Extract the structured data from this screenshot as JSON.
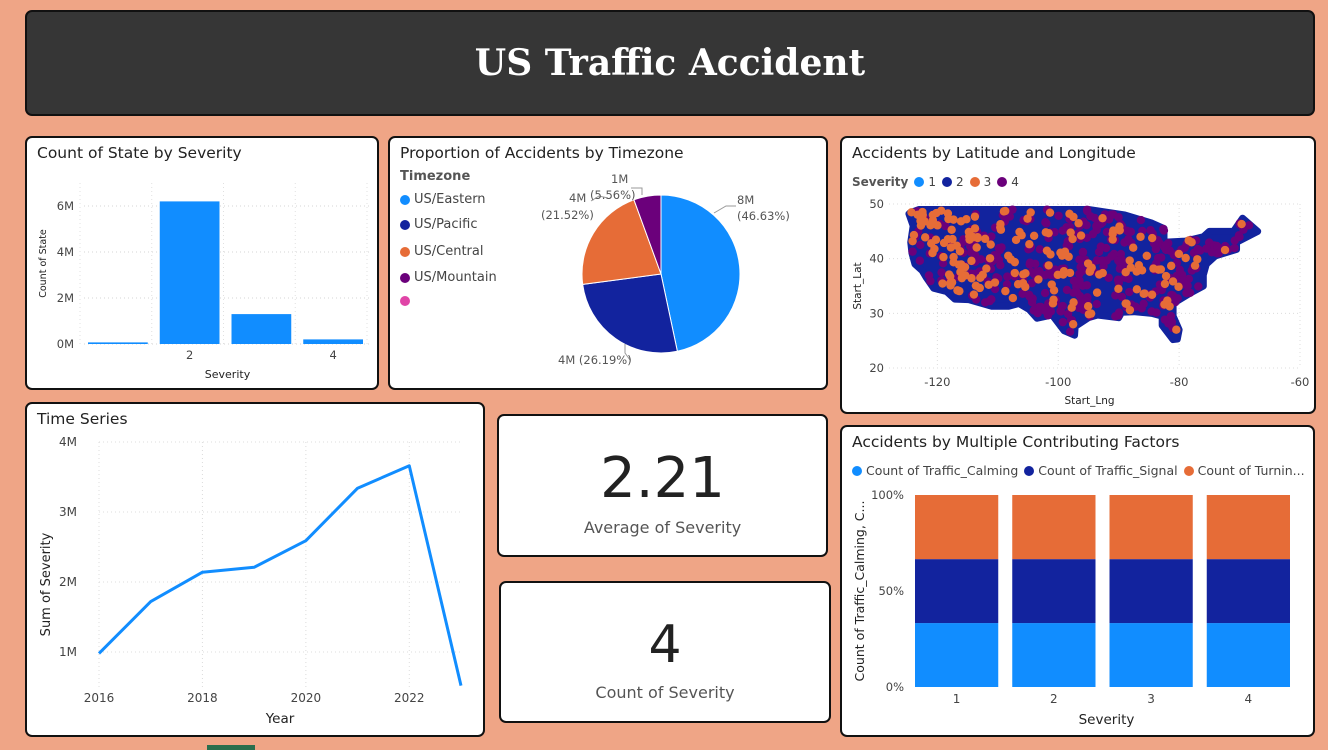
{
  "title": "US Traffic Accident",
  "colors": {
    "sev1": "#118dff",
    "sev2": "#12239e",
    "sev3": "#e66c37",
    "sev4": "#6b007b",
    "pink": "#e044a7"
  },
  "bar_card": {
    "title": "Count of State by Severity",
    "chart_data": {
      "type": "bar",
      "categories": [
        "1",
        "2",
        "3",
        "4"
      ],
      "tick_labels": [
        "",
        "2",
        "",
        "4"
      ],
      "values": [
        0.07,
        6.2,
        1.3,
        0.2
      ],
      "unit": "M",
      "xlabel": "Severity",
      "ylabel": "Count of State",
      "ylim": [
        0,
        7
      ],
      "yticks": [
        "0M",
        "2M",
        "4M",
        "6M"
      ]
    }
  },
  "pie_card": {
    "title": "Proportion of Accidents by Timezone",
    "legend_title": "Timezone",
    "legend": [
      "US/Eastern",
      "US/Pacific",
      "US/Central",
      "US/Mountain",
      ""
    ],
    "chart_data": {
      "type": "pie",
      "labels": [
        "US/Eastern",
        "US/Pacific",
        "US/Central",
        "US/Mountain"
      ],
      "values": [
        46.63,
        26.19,
        21.52,
        5.56
      ],
      "data_labels": [
        [
          "8M",
          "(46.63%)"
        ],
        [
          "4M (26.19%)"
        ],
        [
          "4M",
          "(21.52%)"
        ],
        [
          "1M",
          "(5.56%)"
        ]
      ]
    }
  },
  "scatter_card": {
    "title": "Accidents by Latitude and Longitude",
    "legend_title": "Severity",
    "legend": [
      "1",
      "2",
      "3",
      "4"
    ],
    "chart_data": {
      "type": "scatter",
      "xlabel": "Start_Lng",
      "ylabel": "Start_Lat",
      "xlim": [
        -128,
        -60
      ],
      "ylim": [
        20,
        50
      ],
      "xticks": [
        "-120",
        "-100",
        "-80",
        "-60"
      ],
      "yticks": [
        "20",
        "30",
        "40",
        "50"
      ],
      "outline": [
        [
          -124.5,
          48.4
        ],
        [
          -123,
          49
        ],
        [
          -95,
          49
        ],
        [
          -89,
          48
        ],
        [
          -84.5,
          46.5
        ],
        [
          -82.5,
          45.5
        ],
        [
          -82.5,
          43
        ],
        [
          -79,
          43.2
        ],
        [
          -76,
          44
        ],
        [
          -75,
          45
        ],
        [
          -71,
          45
        ],
        [
          -69.5,
          47.4
        ],
        [
          -67,
          45
        ],
        [
          -70.5,
          43
        ],
        [
          -70.5,
          41.7
        ],
        [
          -74,
          40.5
        ],
        [
          -75.5,
          39
        ],
        [
          -76,
          37
        ],
        [
          -76,
          35
        ],
        [
          -78,
          33.8
        ],
        [
          -81,
          31.8
        ],
        [
          -81,
          29.5
        ],
        [
          -80,
          27
        ],
        [
          -80.3,
          25.3
        ],
        [
          -81,
          25.2
        ],
        [
          -82.8,
          27.8
        ],
        [
          -82.8,
          29.5
        ],
        [
          -84.5,
          30
        ],
        [
          -87.5,
          30.3
        ],
        [
          -89.5,
          30.2
        ],
        [
          -90,
          29.2
        ],
        [
          -93.5,
          29.7
        ],
        [
          -95,
          29.2
        ],
        [
          -97.2,
          27.6
        ],
        [
          -97.3,
          26
        ],
        [
          -99,
          26.8
        ],
        [
          -101,
          29.7
        ],
        [
          -103.5,
          29.1
        ],
        [
          -104.8,
          30.7
        ],
        [
          -106.5,
          31.8
        ],
        [
          -108.2,
          31.3
        ],
        [
          -111,
          31.3
        ],
        [
          -114.8,
          32.5
        ],
        [
          -117.1,
          32.6
        ],
        [
          -118.5,
          34
        ],
        [
          -120.6,
          34.6
        ],
        [
          -121.8,
          36.5
        ],
        [
          -122.5,
          37.8
        ],
        [
          -123.7,
          39
        ],
        [
          -124.2,
          41
        ],
        [
          -124.4,
          43
        ],
        [
          -124,
          46
        ],
        [
          -124.7,
          48.2
        ]
      ]
    }
  },
  "line_card": {
    "title": "Time Series",
    "chart_data": {
      "type": "line",
      "x": [
        2016,
        2017,
        2018,
        2019,
        2020,
        2021,
        2022,
        2023
      ],
      "values": [
        0.98,
        1.72,
        2.14,
        2.21,
        2.59,
        3.34,
        3.66,
        0.52
      ],
      "unit": "M",
      "xlabel": "Year",
      "ylabel": "Sum of Severity",
      "xticks": [
        "2016",
        "2018",
        "2020",
        "2022"
      ],
      "yticks": [
        "1M",
        "2M",
        "3M",
        "4M"
      ],
      "ylim": [
        0.5,
        4
      ]
    }
  },
  "kpi_avg": {
    "value": "2.21",
    "label": "Average of Severity"
  },
  "kpi_count": {
    "value": "4",
    "label": "Count of Severity"
  },
  "stacked_card": {
    "title": "Accidents by Multiple Contributing Factors",
    "legend": [
      "Count of Traffic_Calming",
      "Count of Traffic_Signal",
      "Count of Turnin..."
    ],
    "chart_data": {
      "type": "bar",
      "stacked": "100%",
      "categories": [
        "1",
        "2",
        "3",
        "4"
      ],
      "series": [
        {
          "name": "Count of Traffic_Calming",
          "values": [
            33.3,
            33.3,
            33.3,
            33.3
          ]
        },
        {
          "name": "Count of Traffic_Signal",
          "values": [
            33.3,
            33.3,
            33.3,
            33.3
          ]
        },
        {
          "name": "Count of Turnin...",
          "values": [
            33.4,
            33.4,
            33.4,
            33.4
          ]
        }
      ],
      "xlabel": "Severity",
      "ylabel": "Count of Traffic_Calming, C...",
      "yticks": [
        "0%",
        "50%",
        "100%"
      ]
    }
  }
}
